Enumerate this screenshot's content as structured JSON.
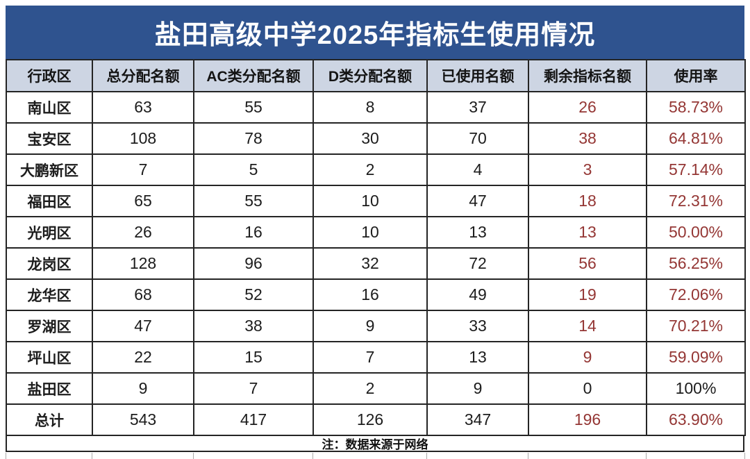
{
  "title": "盐田高级中学2025年指标生使用情况",
  "colors": {
    "banner_bg": "#2F538F",
    "banner_text": "#FFFFFF",
    "header_bg": "#CDD5E3",
    "grid": "#242424",
    "text": "#1C1C1C",
    "highlight_red": "#943634"
  },
  "table": {
    "columns": [
      "行政区",
      "总分配名额",
      "AC类分配名额",
      "D类分配名额",
      "已使用名额",
      "剩余指标名额",
      "使用率"
    ],
    "rows": [
      {
        "district": "南山区",
        "total": "63",
        "ac": "55",
        "d": "8",
        "used": "37",
        "remaining": "26",
        "rate": "58.73%",
        "highlight": true
      },
      {
        "district": "宝安区",
        "total": "108",
        "ac": "78",
        "d": "30",
        "used": "70",
        "remaining": "38",
        "rate": "64.81%",
        "highlight": true
      },
      {
        "district": "大鹏新区",
        "total": "7",
        "ac": "5",
        "d": "2",
        "used": "4",
        "remaining": "3",
        "rate": "57.14%",
        "highlight": true
      },
      {
        "district": "福田区",
        "total": "65",
        "ac": "55",
        "d": "10",
        "used": "47",
        "remaining": "18",
        "rate": "72.31%",
        "highlight": true
      },
      {
        "district": "光明区",
        "total": "26",
        "ac": "16",
        "d": "10",
        "used": "13",
        "remaining": "13",
        "rate": "50.00%",
        "highlight": true
      },
      {
        "district": "龙岗区",
        "total": "128",
        "ac": "96",
        "d": "32",
        "used": "72",
        "remaining": "56",
        "rate": "56.25%",
        "highlight": true
      },
      {
        "district": "龙华区",
        "total": "68",
        "ac": "52",
        "d": "16",
        "used": "49",
        "remaining": "19",
        "rate": "72.06%",
        "highlight": true
      },
      {
        "district": "罗湖区",
        "total": "47",
        "ac": "38",
        "d": "9",
        "used": "33",
        "remaining": "14",
        "rate": "70.21%",
        "highlight": true
      },
      {
        "district": "坪山区",
        "total": "22",
        "ac": "15",
        "d": "7",
        "used": "13",
        "remaining": "9",
        "rate": "59.09%",
        "highlight": true
      },
      {
        "district": "盐田区",
        "total": "9",
        "ac": "7",
        "d": "2",
        "used": "9",
        "remaining": "0",
        "rate": "100%",
        "highlight": false
      },
      {
        "district": "总计",
        "total": "543",
        "ac": "417",
        "d": "126",
        "used": "347",
        "remaining": "196",
        "rate": "63.90%",
        "highlight": true
      }
    ],
    "note": "注：数据来源于网络"
  },
  "chart_data": {
    "type": "table",
    "title": "盐田高级中学2025年指标生使用情况",
    "categories": [
      "南山区",
      "宝安区",
      "大鹏新区",
      "福田区",
      "光明区",
      "龙岗区",
      "龙华区",
      "罗湖区",
      "坪山区",
      "盐田区",
      "总计"
    ],
    "series": [
      {
        "name": "总分配名额",
        "values": [
          63,
          108,
          7,
          65,
          26,
          128,
          68,
          47,
          22,
          9,
          543
        ]
      },
      {
        "name": "AC类分配名额",
        "values": [
          55,
          78,
          5,
          55,
          16,
          96,
          52,
          38,
          15,
          7,
          417
        ]
      },
      {
        "name": "D类分配名额",
        "values": [
          8,
          30,
          2,
          10,
          10,
          32,
          16,
          9,
          7,
          2,
          126
        ]
      },
      {
        "name": "已使用名额",
        "values": [
          37,
          70,
          4,
          47,
          13,
          72,
          49,
          33,
          13,
          9,
          347
        ]
      },
      {
        "name": "剩余指标名额",
        "values": [
          26,
          38,
          3,
          18,
          13,
          56,
          19,
          14,
          9,
          0,
          196
        ]
      },
      {
        "name": "使用率",
        "values": [
          "58.73%",
          "64.81%",
          "57.14%",
          "72.31%",
          "50.00%",
          "56.25%",
          "72.06%",
          "70.21%",
          "59.09%",
          "100%",
          "63.90%"
        ]
      }
    ]
  }
}
